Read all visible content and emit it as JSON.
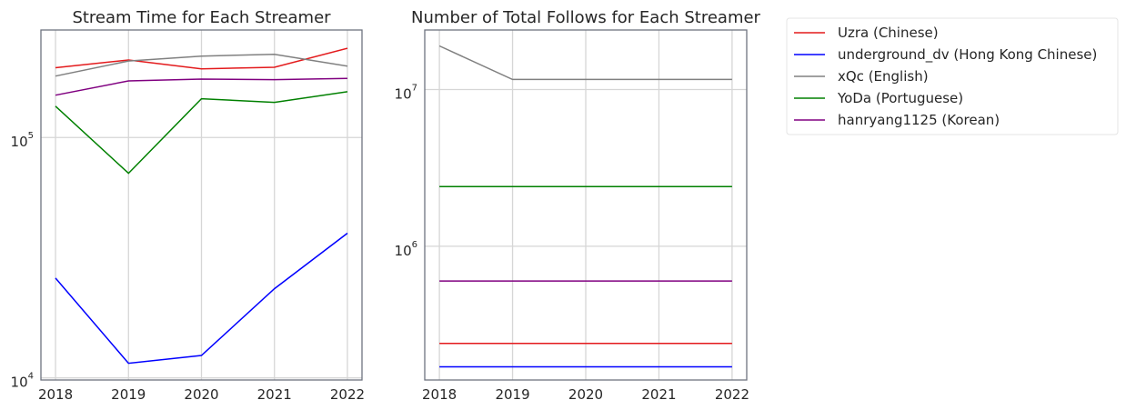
{
  "chart_data": [
    {
      "type": "line",
      "title": "Stream Time for Each Streamer",
      "xlabel": "",
      "ylabel": "",
      "yscale": "log",
      "x": [
        2018,
        2019,
        2020,
        2021,
        2022
      ],
      "x_tick_labels": [
        "2018",
        "2019",
        "2020",
        "2021",
        "2022"
      ],
      "y_ticks": [
        {
          "base": "10",
          "exp": "4",
          "value": 10000
        },
        {
          "base": "10",
          "exp": "5",
          "value": 100000
        }
      ],
      "xlim": [
        2017.8,
        2022.2
      ],
      "ylim": [
        9800,
        280000
      ],
      "grid": true,
      "series": [
        {
          "name": "Uzra (Chinese)",
          "color": "#e31a1c",
          "values": [
            195000,
            210000,
            193000,
            196000,
            235000
          ]
        },
        {
          "name": "underground_dv (Hong Kong Chinese)",
          "color": "#0000ff",
          "values": [
            26000,
            11500,
            12400,
            23500,
            40000
          ]
        },
        {
          "name": "xQc (English)",
          "color": "#808080",
          "values": [
            180000,
            208000,
            218000,
            222000,
            198000
          ]
        },
        {
          "name": "YoDa (Portuguese)",
          "color": "#008000",
          "values": [
            135000,
            71000,
            145000,
            140000,
            155000
          ]
        },
        {
          "name": "hanryang1125 (Korean)",
          "color": "#800080",
          "values": [
            150000,
            172000,
            175000,
            174000,
            176000
          ]
        }
      ]
    },
    {
      "type": "line",
      "title": "Number of Total Follows for Each Streamer",
      "xlabel": "",
      "ylabel": "",
      "yscale": "log",
      "x": [
        2018,
        2019,
        2020,
        2021,
        2022
      ],
      "x_tick_labels": [
        "2018",
        "2019",
        "2020",
        "2021",
        "2022"
      ],
      "y_ticks": [
        {
          "base": "10",
          "exp": "6",
          "value": 1000000
        },
        {
          "base": "10",
          "exp": "7",
          "value": 10000000
        }
      ],
      "xlim": [
        2017.8,
        2022.2
      ],
      "ylim": [
        140000,
        24000000
      ],
      "grid": true,
      "series": [
        {
          "name": "Uzra (Chinese)",
          "color": "#e31a1c",
          "values": [
            240000,
            240000,
            240000,
            240000,
            240000
          ]
        },
        {
          "name": "underground_dv (Hong Kong Chinese)",
          "color": "#0000ff",
          "values": [
            170000,
            170000,
            170000,
            170000,
            170000
          ]
        },
        {
          "name": "xQc (English)",
          "color": "#808080",
          "values": [
            19000000,
            11600000,
            11600000,
            11600000,
            11600000
          ]
        },
        {
          "name": "YoDa (Portuguese)",
          "color": "#008000",
          "values": [
            2400000,
            2400000,
            2400000,
            2400000,
            2400000
          ]
        },
        {
          "name": "hanryang1125 (Korean)",
          "color": "#800080",
          "values": [
            600000,
            600000,
            600000,
            600000,
            600000
          ]
        }
      ]
    }
  ],
  "legend": {
    "placement": "outside-right",
    "entries": [
      {
        "label": "Uzra (Chinese)",
        "color": "#e31a1c"
      },
      {
        "label": "underground_dv (Hong Kong Chinese)",
        "color": "#0000ff"
      },
      {
        "label": "xQc (English)",
        "color": "#808080"
      },
      {
        "label": "YoDa (Portuguese)",
        "color": "#008000"
      },
      {
        "label": "hanryang1125 (Korean)",
        "color": "#800080"
      }
    ]
  }
}
